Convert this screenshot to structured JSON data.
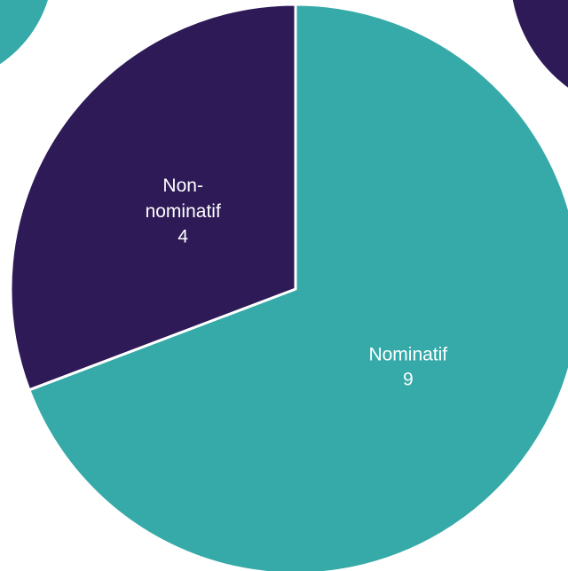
{
  "chart_data": {
    "type": "pie",
    "categories": [
      "Nominatif",
      "Non-nominatif"
    ],
    "values": [
      9,
      4
    ],
    "colors": [
      "#36a9a9",
      "#2e1a57"
    ]
  }
}
